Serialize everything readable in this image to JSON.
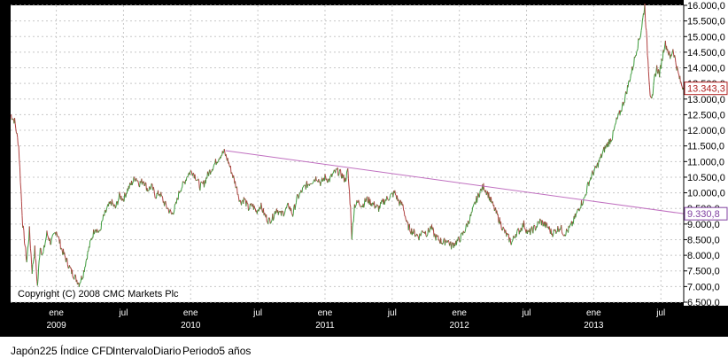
{
  "footer": {
    "instrument": "Japón225 Índice CFD",
    "interval": "IntervaloDiario",
    "period": "Periodo5 años"
  },
  "copyright": "Copyright (C) 2008 CMC Markets Plc",
  "colors": {
    "background": "#000000",
    "plot_background": "#ffffff",
    "grid": "#c8c8c8",
    "up": "#3c9c3c",
    "down": "#b04040",
    "trendline": "#c070c0",
    "price_tag": "#b02020",
    "trend_tag": "#8040a0"
  },
  "chart_data": {
    "type": "line",
    "title": "",
    "xlabel": "",
    "ylabel": "",
    "ylim": [
      6500,
      16000
    ],
    "grid": true,
    "y_ticks": [
      "16.000,0",
      "15.500,0",
      "15.000,0",
      "14.500,0",
      "14.000,0",
      "13.500,0",
      "13.000,0",
      "12.500,0",
      "12.000,0",
      "11.500,0",
      "11.000,0",
      "10.500,0",
      "10.000,0",
      "9.500,0",
      "9.000,0",
      "8.500,0",
      "8.000,0",
      "7.500,0",
      "7.000,0",
      "6.500,0"
    ],
    "y_tick_values": [
      16000,
      15500,
      15000,
      14500,
      14000,
      13500,
      13000,
      12500,
      12000,
      11500,
      11000,
      10500,
      10000,
      9500,
      9000,
      8500,
      8000,
      7500,
      7000,
      6500
    ],
    "x_ticks": [
      {
        "label": "ene",
        "sub": "2009",
        "t": 2009.0
      },
      {
        "label": "jul",
        "sub": "",
        "t": 2009.5
      },
      {
        "label": "ene",
        "sub": "2010",
        "t": 2010.0
      },
      {
        "label": "jul",
        "sub": "",
        "t": 2010.5
      },
      {
        "label": "ene",
        "sub": "2011",
        "t": 2011.0
      },
      {
        "label": "jul",
        "sub": "",
        "t": 2011.5
      },
      {
        "label": "ene",
        "sub": "2012",
        "t": 2012.0
      },
      {
        "label": "jul",
        "sub": "",
        "t": 2012.5
      },
      {
        "label": "ene",
        "sub": "2013",
        "t": 2013.0
      },
      {
        "label": "jul",
        "sub": "",
        "t": 2013.5
      }
    ],
    "x_range": [
      2008.66,
      2013.67
    ],
    "series": [
      {
        "type": "price",
        "points": [
          [
            2008.66,
            12500
          ],
          [
            2008.69,
            12300
          ],
          [
            2008.72,
            11500
          ],
          [
            2008.75,
            9000
          ],
          [
            2008.78,
            7800
          ],
          [
            2008.8,
            8800
          ],
          [
            2008.82,
            7500
          ],
          [
            2008.84,
            8200
          ],
          [
            2008.86,
            7000
          ],
          [
            2008.88,
            8300
          ],
          [
            2008.9,
            8000
          ],
          [
            2008.93,
            8700
          ],
          [
            2008.96,
            8400
          ],
          [
            2009.0,
            8800
          ],
          [
            2009.04,
            8200
          ],
          [
            2009.08,
            7800
          ],
          [
            2009.11,
            7500
          ],
          [
            2009.14,
            7300
          ],
          [
            2009.17,
            7100
          ],
          [
            2009.2,
            7400
          ],
          [
            2009.23,
            8000
          ],
          [
            2009.26,
            8500
          ],
          [
            2009.29,
            8900
          ],
          [
            2009.32,
            8700
          ],
          [
            2009.35,
            9200
          ],
          [
            2009.38,
            9500
          ],
          [
            2009.41,
            9700
          ],
          [
            2009.44,
            9500
          ],
          [
            2009.47,
            9900
          ],
          [
            2009.5,
            9800
          ],
          [
            2009.53,
            10100
          ],
          [
            2009.56,
            10300
          ],
          [
            2009.59,
            10500
          ],
          [
            2009.62,
            10300
          ],
          [
            2009.65,
            10400
          ],
          [
            2009.68,
            10100
          ],
          [
            2009.71,
            10200
          ],
          [
            2009.74,
            9900
          ],
          [
            2009.77,
            10000
          ],
          [
            2009.8,
            9700
          ],
          [
            2009.83,
            9500
          ],
          [
            2009.86,
            9300
          ],
          [
            2009.89,
            9600
          ],
          [
            2009.92,
            10100
          ],
          [
            2009.95,
            10300
          ],
          [
            2009.98,
            10600
          ],
          [
            2010.01,
            10700
          ],
          [
            2010.04,
            10500
          ],
          [
            2010.07,
            10200
          ],
          [
            2010.1,
            10300
          ],
          [
            2010.13,
            10600
          ],
          [
            2010.16,
            10800
          ],
          [
            2010.19,
            11000
          ],
          [
            2010.22,
            11200
          ],
          [
            2010.25,
            11300
          ],
          [
            2010.28,
            11000
          ],
          [
            2010.31,
            10600
          ],
          [
            2010.34,
            10200
          ],
          [
            2010.37,
            9700
          ],
          [
            2010.4,
            9800
          ],
          [
            2010.43,
            9500
          ],
          [
            2010.46,
            9600
          ],
          [
            2010.49,
            9400
          ],
          [
            2010.52,
            9600
          ],
          [
            2010.55,
            9300
          ],
          [
            2010.58,
            9100
          ],
          [
            2010.61,
            9200
          ],
          [
            2010.64,
            9500
          ],
          [
            2010.67,
            9300
          ],
          [
            2010.7,
            9400
          ],
          [
            2010.73,
            9600
          ],
          [
            2010.76,
            9300
          ],
          [
            2010.79,
            9800
          ],
          [
            2010.82,
            10000
          ],
          [
            2010.85,
            10200
          ],
          [
            2010.88,
            10300
          ],
          [
            2010.91,
            10400
          ],
          [
            2010.94,
            10500
          ],
          [
            2010.97,
            10300
          ],
          [
            2011.0,
            10500
          ],
          [
            2011.03,
            10400
          ],
          [
            2011.06,
            10600
          ],
          [
            2011.09,
            10700
          ],
          [
            2011.12,
            10600
          ],
          [
            2011.15,
            10400
          ],
          [
            2011.17,
            10700
          ],
          [
            2011.19,
            9500
          ],
          [
            2011.2,
            8600
          ],
          [
            2011.22,
            9600
          ],
          [
            2011.25,
            9700
          ],
          [
            2011.28,
            9600
          ],
          [
            2011.31,
            9800
          ],
          [
            2011.34,
            9700
          ],
          [
            2011.37,
            9600
          ],
          [
            2011.4,
            9500
          ],
          [
            2011.43,
            9700
          ],
          [
            2011.46,
            9800
          ],
          [
            2011.49,
            9900
          ],
          [
            2011.52,
            10000
          ],
          [
            2011.55,
            9700
          ],
          [
            2011.58,
            9600
          ],
          [
            2011.61,
            9000
          ],
          [
            2011.64,
            8800
          ],
          [
            2011.67,
            8700
          ],
          [
            2011.7,
            8600
          ],
          [
            2011.73,
            8800
          ],
          [
            2011.76,
            8700
          ],
          [
            2011.79,
            8900
          ],
          [
            2011.82,
            8600
          ],
          [
            2011.85,
            8500
          ],
          [
            2011.88,
            8400
          ],
          [
            2011.91,
            8500
          ],
          [
            2011.94,
            8300
          ],
          [
            2011.97,
            8400
          ],
          [
            2012.0,
            8500
          ],
          [
            2012.03,
            8700
          ],
          [
            2012.06,
            9000
          ],
          [
            2012.09,
            9300
          ],
          [
            2012.12,
            9700
          ],
          [
            2012.15,
            10000
          ],
          [
            2012.18,
            10200
          ],
          [
            2012.21,
            10000
          ],
          [
            2012.24,
            9700
          ],
          [
            2012.27,
            9400
          ],
          [
            2012.3,
            9100
          ],
          [
            2012.33,
            8800
          ],
          [
            2012.36,
            8600
          ],
          [
            2012.39,
            8400
          ],
          [
            2012.42,
            8700
          ],
          [
            2012.45,
            8800
          ],
          [
            2012.48,
            9000
          ],
          [
            2012.51,
            8700
          ],
          [
            2012.54,
            8800
          ],
          [
            2012.57,
            8900
          ],
          [
            2012.6,
            9100
          ],
          [
            2012.63,
            9000
          ],
          [
            2012.66,
            8900
          ],
          [
            2012.69,
            8700
          ],
          [
            2012.72,
            8800
          ],
          [
            2012.75,
            8900
          ],
          [
            2012.78,
            8700
          ],
          [
            2012.81,
            8800
          ],
          [
            2012.84,
            9000
          ],
          [
            2012.87,
            9300
          ],
          [
            2012.9,
            9600
          ],
          [
            2012.93,
            9800
          ],
          [
            2012.96,
            10300
          ],
          [
            2012.99,
            10600
          ],
          [
            2013.02,
            10800
          ],
          [
            2013.05,
            11100
          ],
          [
            2013.08,
            11400
          ],
          [
            2013.11,
            11600
          ],
          [
            2013.14,
            11800
          ],
          [
            2013.17,
            12300
          ],
          [
            2013.2,
            12600
          ],
          [
            2013.23,
            13000
          ],
          [
            2013.26,
            13500
          ],
          [
            2013.29,
            14000
          ],
          [
            2013.32,
            14600
          ],
          [
            2013.35,
            15100
          ],
          [
            2013.37,
            15700
          ],
          [
            2013.38,
            16000
          ],
          [
            2013.4,
            14500
          ],
          [
            2013.42,
            13200
          ],
          [
            2013.44,
            13000
          ],
          [
            2013.45,
            13600
          ],
          [
            2013.47,
            14000
          ],
          [
            2013.49,
            13800
          ],
          [
            2013.51,
            14300
          ],
          [
            2013.53,
            14800
          ],
          [
            2013.55,
            14600
          ],
          [
            2013.57,
            14300
          ],
          [
            2013.59,
            14600
          ],
          [
            2013.61,
            14200
          ],
          [
            2013.63,
            13800
          ],
          [
            2013.65,
            13500
          ],
          [
            2013.67,
            13343
          ]
        ]
      },
      {
        "type": "trendline",
        "points": [
          [
            2010.26,
            11350
          ],
          [
            2013.67,
            9330.8
          ]
        ]
      }
    ],
    "last_price_label": "13.343,3",
    "trendline_label": "9.330,8"
  }
}
